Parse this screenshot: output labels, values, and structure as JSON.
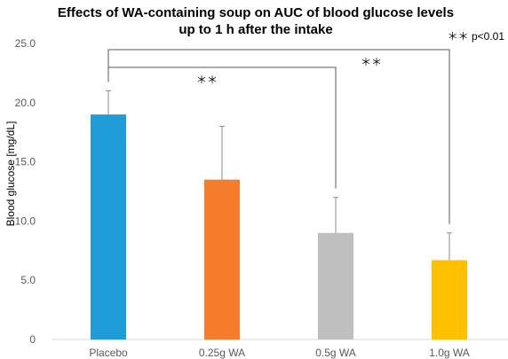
{
  "chart_data": {
    "type": "bar",
    "title_lines": [
      "Effects of WA-containing soup on AUC of blood glucose levels",
      "up to 1 h after the intake"
    ],
    "ylabel": "Blood glucose [mg/dL]",
    "xlabel": "",
    "ylim": [
      0,
      25
    ],
    "yticks": [
      "0",
      "5.0",
      "10.0",
      "15.0",
      "20.0",
      "25.0"
    ],
    "ytick_values": [
      0,
      5,
      10,
      15,
      20,
      25
    ],
    "grid": false,
    "categories": [
      "Placebo",
      "0.25g WA",
      "0.5g WA",
      "1.0g WA"
    ],
    "values": [
      19.0,
      13.5,
      9.0,
      6.7
    ],
    "error_upper": [
      21.0,
      18.0,
      12.0,
      9.0
    ],
    "colors": [
      "#1f9bd7",
      "#f47c2a",
      "#bfbfbf",
      "#ffc000"
    ],
    "significance_note": "＊＊ p<0.01",
    "comparisons": [
      {
        "from": "Placebo",
        "to": "0.5g WA",
        "label": "＊＊"
      },
      {
        "from": "Placebo",
        "to": "1.0g WA",
        "label": "＊＊"
      }
    ]
  }
}
